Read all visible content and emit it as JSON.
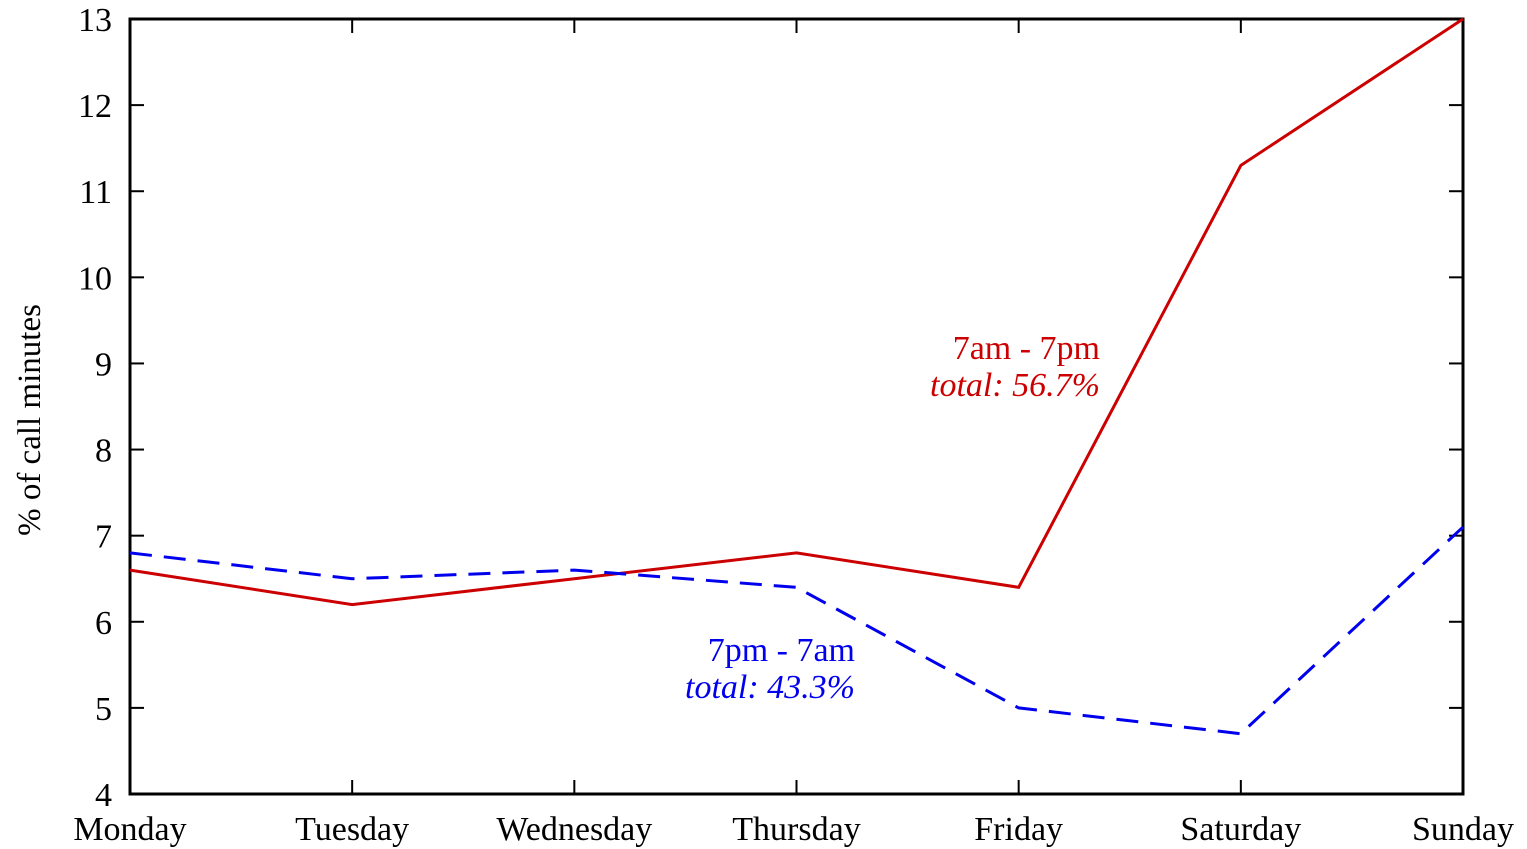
{
  "chart_data": {
    "type": "line",
    "categories": [
      "Monday",
      "Tuesday",
      "Wednesday",
      "Thursday",
      "Friday",
      "Saturday",
      "Sunday"
    ],
    "ylabel": "% of call minutes",
    "ylim": [
      4,
      13
    ],
    "yticks": [
      4,
      5,
      6,
      7,
      8,
      9,
      10,
      11,
      12,
      13
    ],
    "grid": false,
    "series": [
      {
        "name": "7am - 7pm",
        "color": "#cc0000",
        "line_style": "solid",
        "values": [
          6.6,
          6.2,
          6.5,
          6.8,
          6.4,
          11.3,
          13.0
        ]
      },
      {
        "name": "7pm - 7am",
        "color": "#0000ee",
        "line_style": "dashed",
        "values": [
          6.8,
          6.5,
          6.6,
          6.4,
          5.0,
          4.7,
          7.1
        ]
      }
    ],
    "annotations": [
      {
        "series": "7am - 7pm",
        "title": "7am - 7pm",
        "total": "total: 56.7%",
        "color": "#cc0000"
      },
      {
        "series": "7pm - 7am",
        "title": "7pm - 7am",
        "total": "total: 43.3%",
        "color": "#0000ee"
      }
    ]
  }
}
